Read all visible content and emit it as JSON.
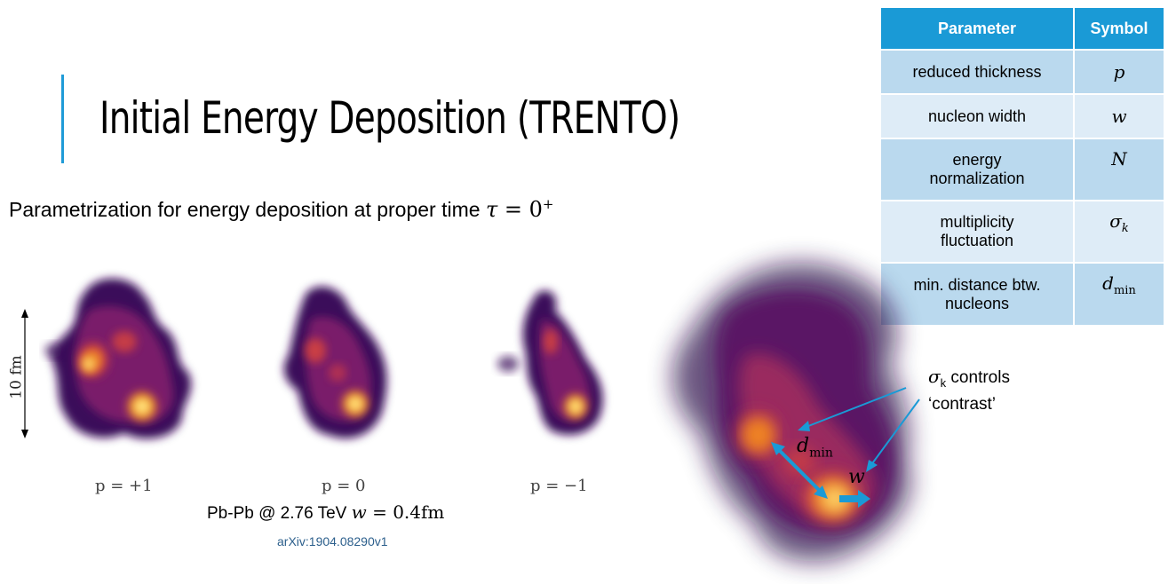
{
  "slide": {
    "title": "Initial Energy Deposition (TRENTO)",
    "subtitle_text": "Parametrization for energy deposition at proper time ",
    "subtitle_math_var": "τ",
    "subtitle_math_rest": " = 0",
    "subtitle_math_sup": "+",
    "accent_color": "#1f9bd7"
  },
  "table": {
    "headers": [
      "Parameter",
      "Symbol"
    ],
    "rows": [
      {
        "parameter": "reduced thickness",
        "symbol": "p",
        "symbol_sub": ""
      },
      {
        "parameter": "nucleon width",
        "symbol": "w",
        "symbol_sub": ""
      },
      {
        "parameter_line1": "energy",
        "parameter_line2": "normalization",
        "symbol": "N",
        "symbol_sub": ""
      },
      {
        "parameter_line1": "multiplicity",
        "parameter_line2": "fluctuation",
        "symbol": "σ",
        "symbol_sub": "k"
      },
      {
        "parameter_line1": "min. distance btw.",
        "parameter_line2": "nucleons",
        "symbol": "d",
        "symbol_sub": "min"
      }
    ],
    "header_color": "#1a9ad6",
    "row_color_dark": "#bad9ee",
    "row_color_light": "#deecf7"
  },
  "figure": {
    "scale_label": "10 fm",
    "panel_labels": [
      "p = +1",
      "p = 0",
      "p = −1"
    ],
    "caption_text": "Pb-Pb @ 2.76 TeV ",
    "caption_math_var": "w",
    "caption_math_rest": " = 0.4fm",
    "citation": "arXiv:1904.08290v1"
  },
  "zoom": {
    "annotation_symbol": "σ",
    "annotation_sub": "k",
    "annotation_line1_rest": " controls",
    "annotation_line2": "‘contrast’",
    "dmin_symbol": "d",
    "dmin_sub": "min",
    "w_symbol": "w",
    "arrow_color": "#1a9ad6"
  }
}
